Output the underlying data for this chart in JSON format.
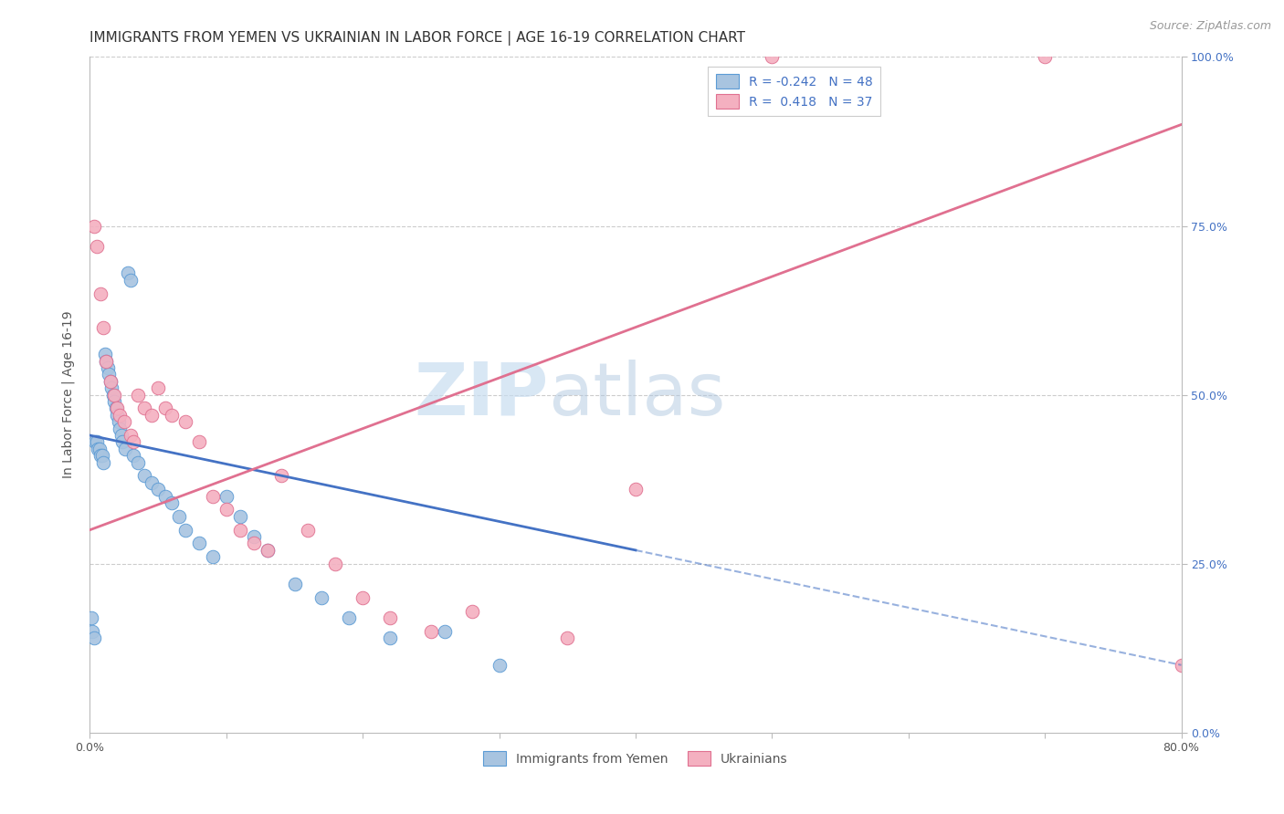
{
  "title": "IMMIGRANTS FROM YEMEN VS UKRAINIAN IN LABOR FORCE | AGE 16-19 CORRELATION CHART",
  "source": "Source: ZipAtlas.com",
  "ylabel": "In Labor Force | Age 16-19",
  "right_ytick_vals": [
    0,
    25,
    50,
    75,
    100
  ],
  "right_ytick_labels": [
    "0.0%",
    "25.0%",
    "50.0%",
    "75.0%",
    "100.0%"
  ],
  "watermark_zip": "ZIP",
  "watermark_atlas": "atlas",
  "legend_blue_r": "-0.242",
  "legend_blue_n": "48",
  "legend_pink_r": "0.418",
  "legend_pink_n": "37",
  "legend_label_blue": "Immigrants from Yemen",
  "legend_label_pink": "Ukrainians",
  "blue_face_color": "#a8c4e0",
  "blue_edge_color": "#5b9bd5",
  "pink_face_color": "#f4b0c0",
  "pink_edge_color": "#e07090",
  "blue_line_color": "#4472c4",
  "pink_line_color": "#e07090",
  "blue_scatter_x": [
    0.1,
    0.2,
    0.3,
    0.4,
    0.5,
    0.6,
    0.7,
    0.8,
    0.9,
    1.0,
    1.1,
    1.2,
    1.3,
    1.4,
    1.5,
    1.6,
    1.7,
    1.8,
    1.9,
    2.0,
    2.1,
    2.2,
    2.3,
    2.4,
    2.6,
    2.8,
    3.0,
    3.2,
    3.5,
    4.0,
    4.5,
    5.0,
    5.5,
    6.0,
    6.5,
    7.0,
    8.0,
    9.0,
    10.0,
    11.0,
    12.0,
    13.0,
    15.0,
    17.0,
    19.0,
    22.0,
    26.0,
    30.0
  ],
  "blue_scatter_y": [
    17,
    15,
    14,
    43,
    43,
    42,
    42,
    41,
    41,
    40,
    56,
    55,
    54,
    53,
    52,
    51,
    50,
    49,
    48,
    47,
    46,
    45,
    44,
    43,
    42,
    68,
    67,
    41,
    40,
    38,
    37,
    36,
    35,
    34,
    32,
    30,
    28,
    26,
    35,
    32,
    29,
    27,
    22,
    20,
    17,
    14,
    15,
    10
  ],
  "pink_scatter_x": [
    0.3,
    0.5,
    0.8,
    1.0,
    1.2,
    1.5,
    1.8,
    2.0,
    2.2,
    2.5,
    3.0,
    3.2,
    3.5,
    4.0,
    4.5,
    5.0,
    5.5,
    6.0,
    7.0,
    8.0,
    9.0,
    10.0,
    11.0,
    12.0,
    13.0,
    14.0,
    16.0,
    18.0,
    20.0,
    22.0,
    25.0,
    28.0,
    35.0,
    40.0,
    50.0,
    70.0,
    80.0
  ],
  "pink_scatter_y": [
    75,
    72,
    65,
    60,
    55,
    52,
    50,
    48,
    47,
    46,
    44,
    43,
    50,
    48,
    47,
    51,
    48,
    47,
    46,
    43,
    35,
    33,
    30,
    28,
    27,
    38,
    30,
    25,
    20,
    17,
    15,
    18,
    14,
    36,
    100,
    100,
    10
  ],
  "blue_trendline_x0": 0,
  "blue_trendline_y0": 44,
  "blue_trendline_x1": 80,
  "blue_trendline_y1": 10,
  "blue_solid_end_x": 40,
  "pink_trendline_x0": 0,
  "pink_trendline_y0": 30,
  "pink_trendline_x1": 80,
  "pink_trendline_y1": 90,
  "xlim": [
    0,
    80
  ],
  "ylim": [
    0,
    100
  ],
  "grid_color": "#cccccc",
  "background_color": "#ffffff",
  "title_fontsize": 11,
  "ylabel_fontsize": 10,
  "tick_fontsize": 9,
  "source_fontsize": 9,
  "legend_fontsize": 10
}
